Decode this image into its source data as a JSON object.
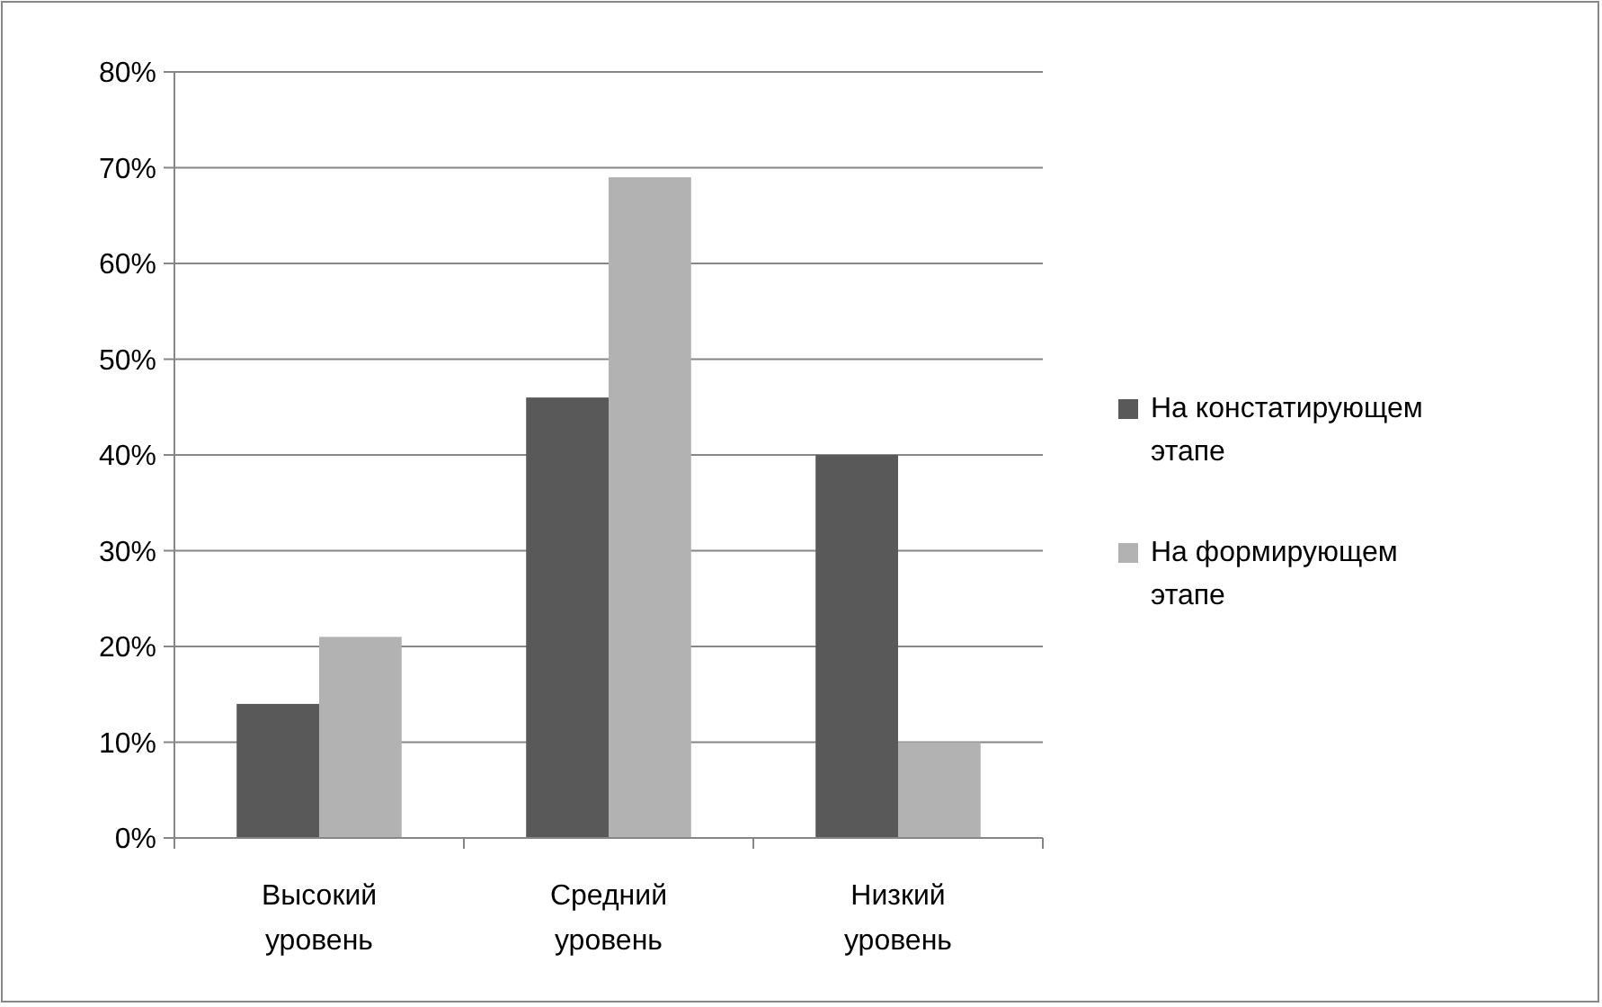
{
  "chart_data": {
    "type": "bar",
    "categories": [
      "Высокий уровень",
      "Средний уровень",
      "Низкий уровень"
    ],
    "series": [
      {
        "name": "На констатирующем этапе",
        "color": "#595959",
        "values": [
          14,
          46,
          40
        ]
      },
      {
        "name": "На формирующем этапе",
        "color": "#b2b2b2",
        "values": [
          21,
          69,
          10
        ]
      }
    ],
    "ylim": [
      0,
      80
    ],
    "yticks": [
      {
        "value": 0,
        "label": "0%"
      },
      {
        "value": 10,
        "label": "10%"
      },
      {
        "value": 20,
        "label": "20%"
      },
      {
        "value": 30,
        "label": "30%"
      },
      {
        "value": 40,
        "label": "40%"
      },
      {
        "value": 50,
        "label": "50%"
      },
      {
        "value": 60,
        "label": "60%"
      },
      {
        "value": 70,
        "label": "70%"
      },
      {
        "value": 80,
        "label": "80%"
      }
    ],
    "grid": "y",
    "legend": "right"
  }
}
